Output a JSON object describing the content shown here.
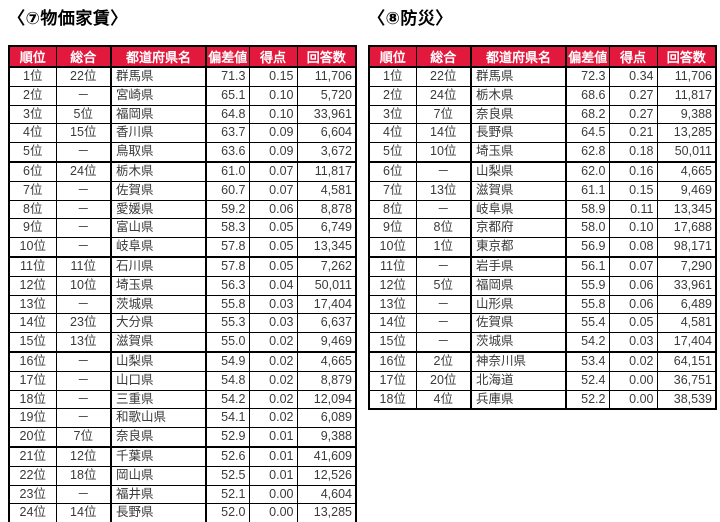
{
  "colors": {
    "header_bg": "#e2183c",
    "header_text": "#ffffff",
    "border": "#000000",
    "body_text": "#3a3a3a",
    "title_text": "#000000"
  },
  "tables": [
    {
      "title": "〈⑦物価家賃〉",
      "headers": [
        "順位",
        "総合",
        "都道府県名",
        "偏差値",
        "得点",
        "回答数"
      ],
      "rows": [
        [
          "1位",
          "22位",
          "群馬県",
          "71.3",
          "0.15",
          "11,706"
        ],
        [
          "2位",
          "－",
          "宮崎県",
          "65.1",
          "0.10",
          "5,720"
        ],
        [
          "3位",
          "5位",
          "福岡県",
          "64.8",
          "0.10",
          "33,961"
        ],
        [
          "4位",
          "15位",
          "香川県",
          "63.7",
          "0.09",
          "6,604"
        ],
        [
          "5位",
          "－",
          "鳥取県",
          "63.6",
          "0.09",
          "3,672"
        ],
        [
          "6位",
          "24位",
          "栃木県",
          "61.0",
          "0.07",
          "11,817"
        ],
        [
          "7位",
          "－",
          "佐賀県",
          "60.7",
          "0.07",
          "4,581"
        ],
        [
          "8位",
          "－",
          "愛媛県",
          "59.2",
          "0.06",
          "8,878"
        ],
        [
          "9位",
          "－",
          "富山県",
          "58.3",
          "0.05",
          "6,749"
        ],
        [
          "10位",
          "－",
          "岐阜県",
          "57.8",
          "0.05",
          "13,345"
        ],
        [
          "11位",
          "11位",
          "石川県",
          "57.8",
          "0.05",
          "7,262"
        ],
        [
          "12位",
          "10位",
          "埼玉県",
          "56.3",
          "0.04",
          "50,011"
        ],
        [
          "13位",
          "－",
          "茨城県",
          "55.8",
          "0.03",
          "17,404"
        ],
        [
          "14位",
          "23位",
          "大分県",
          "55.3",
          "0.03",
          "6,637"
        ],
        [
          "15位",
          "13位",
          "滋賀県",
          "55.0",
          "0.02",
          "9,469"
        ],
        [
          "16位",
          "－",
          "山梨県",
          "54.9",
          "0.02",
          "4,665"
        ],
        [
          "17位",
          "－",
          "山口県",
          "54.8",
          "0.02",
          "8,879"
        ],
        [
          "18位",
          "－",
          "三重県",
          "54.2",
          "0.02",
          "12,094"
        ],
        [
          "19位",
          "－",
          "和歌山県",
          "54.1",
          "0.02",
          "6,089"
        ],
        [
          "20位",
          "7位",
          "奈良県",
          "52.9",
          "0.01",
          "9,388"
        ],
        [
          "21位",
          "12位",
          "千葉県",
          "52.6",
          "0.01",
          "41,609"
        ],
        [
          "22位",
          "18位",
          "岡山県",
          "52.5",
          "0.01",
          "12,526"
        ],
        [
          "23位",
          "－",
          "福井県",
          "52.1",
          "0.00",
          "4,604"
        ],
        [
          "24位",
          "14位",
          "長野県",
          "52.0",
          "0.00",
          "13,285"
        ]
      ]
    },
    {
      "title": "〈⑧防災〉",
      "headers": [
        "順位",
        "総合",
        "都道府県名",
        "偏差値",
        "得点",
        "回答数"
      ],
      "rows": [
        [
          "1位",
          "22位",
          "群馬県",
          "72.3",
          "0.34",
          "11,706"
        ],
        [
          "2位",
          "24位",
          "栃木県",
          "68.6",
          "0.27",
          "11,817"
        ],
        [
          "3位",
          "7位",
          "奈良県",
          "68.2",
          "0.27",
          "9,388"
        ],
        [
          "4位",
          "14位",
          "長野県",
          "64.5",
          "0.21",
          "13,285"
        ],
        [
          "5位",
          "10位",
          "埼玉県",
          "62.8",
          "0.18",
          "50,011"
        ],
        [
          "6位",
          "－",
          "山梨県",
          "62.0",
          "0.16",
          "4,665"
        ],
        [
          "7位",
          "13位",
          "滋賀県",
          "61.1",
          "0.15",
          "9,469"
        ],
        [
          "8位",
          "－",
          "岐阜県",
          "58.9",
          "0.11",
          "13,345"
        ],
        [
          "9位",
          "8位",
          "京都府",
          "58.0",
          "0.10",
          "17,688"
        ],
        [
          "10位",
          "1位",
          "東京都",
          "56.9",
          "0.08",
          "98,171"
        ],
        [
          "11位",
          "－",
          "岩手県",
          "56.1",
          "0.07",
          "7,290"
        ],
        [
          "12位",
          "5位",
          "福岡県",
          "55.9",
          "0.06",
          "33,961"
        ],
        [
          "13位",
          "－",
          "山形県",
          "55.8",
          "0.06",
          "6,489"
        ],
        [
          "14位",
          "－",
          "佐賀県",
          "55.4",
          "0.05",
          "4,581"
        ],
        [
          "15位",
          "－",
          "茨城県",
          "54.2",
          "0.03",
          "17,404"
        ],
        [
          "16位",
          "2位",
          "神奈川県",
          "53.4",
          "0.02",
          "64,151"
        ],
        [
          "17位",
          "20位",
          "北海道",
          "52.4",
          "0.00",
          "36,751"
        ],
        [
          "18位",
          "4位",
          "兵庫県",
          "52.2",
          "0.00",
          "38,539"
        ]
      ]
    }
  ]
}
